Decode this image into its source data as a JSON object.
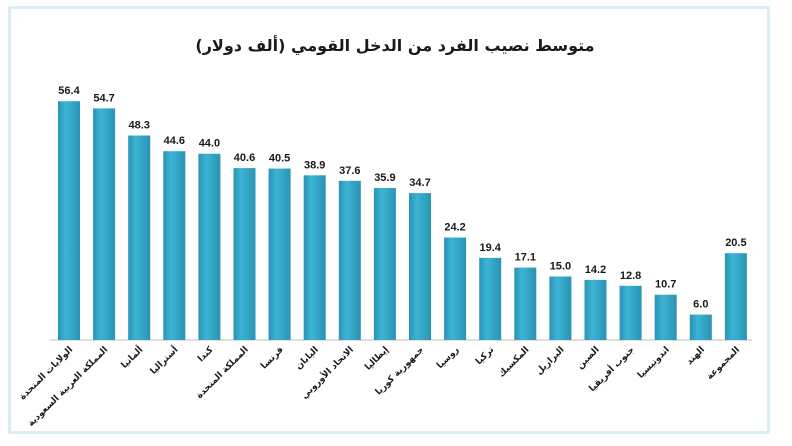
{
  "chart_data": {
    "type": "bar",
    "title": "متوسط نصيب الفرد من الدخل القومي (ألف دولار)",
    "xlabel": "",
    "ylabel": "",
    "ylim": [
      0,
      60
    ],
    "grid": false,
    "bar_color": "#3cb4d4",
    "bar_color_dark": "#2a93b3",
    "categories": [
      "الولايات المتحدة",
      "المملكة العربية السعودية",
      "ألمانيا",
      "أستراليا",
      "كندا",
      "المملكة المتحدة",
      "فرنسا",
      "اليابان",
      "الاتحاد الأوروبي",
      "إيطاليا",
      "جمهورية كوريا",
      "روسيا",
      "تركيا",
      "المكسيك",
      "البرازيل",
      "الصين",
      "جنوب أفريقيا",
      "اندونيسيا",
      "الهند",
      "المجموعة"
    ],
    "values": [
      56.4,
      54.7,
      48.3,
      44.6,
      44.0,
      40.6,
      40.5,
      38.9,
      37.6,
      35.9,
      34.7,
      24.2,
      19.4,
      17.1,
      15.0,
      14.2,
      12.8,
      10.7,
      6.0,
      20.5
    ],
    "value_labels": [
      "56.4",
      "54.7",
      "48.3",
      "44.6",
      "44.0",
      "40.6",
      "40.5",
      "38.9",
      "37.6",
      "35.9",
      "34.7",
      "24.2",
      "19.4",
      "17.1",
      "15.0",
      "14.2",
      "12.8",
      "10.7",
      "6.0",
      "20.5"
    ]
  }
}
